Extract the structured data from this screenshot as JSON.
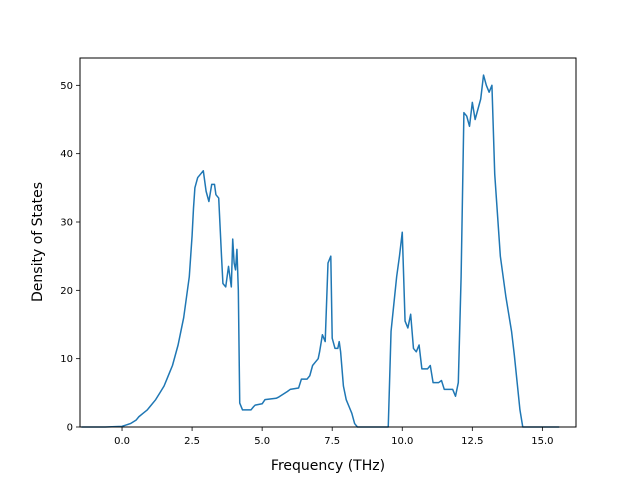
{
  "chart_data": {
    "type": "line",
    "title": "",
    "xlabel": "Frequency (THz)",
    "ylabel": "Density of States",
    "xlim": [
      -1.5,
      16.2
    ],
    "ylim": [
      0,
      54
    ],
    "x_ticks": [
      0.0,
      2.5,
      5.0,
      7.5,
      10.0,
      12.5,
      15.0
    ],
    "x_tick_labels": [
      "0.0",
      "2.5",
      "5.0",
      "7.5",
      "10.0",
      "12.5",
      "15.0"
    ],
    "y_ticks": [
      0,
      10,
      20,
      30,
      40,
      50
    ],
    "y_tick_labels": [
      "0",
      "10",
      "20",
      "30",
      "40",
      "50"
    ],
    "grid": false,
    "legend": "none",
    "series": [
      {
        "color": "#1f77b4",
        "x": [
          -1.45,
          -0.6,
          0.0,
          0.3,
          0.5,
          0.6,
          0.75,
          0.9,
          1.0,
          1.2,
          1.35,
          1.5,
          1.6,
          1.7,
          1.8,
          1.9,
          2.0,
          2.1,
          2.2,
          2.3,
          2.4,
          2.5,
          2.55,
          2.6,
          2.7,
          2.8,
          2.9,
          3.0,
          3.1,
          3.2,
          3.3,
          3.35,
          3.45,
          3.55,
          3.6,
          3.7,
          3.8,
          3.9,
          3.95,
          4.0,
          4.05,
          4.1,
          4.15,
          4.2,
          4.3,
          4.4,
          4.6,
          4.7,
          4.75,
          5.0,
          5.1,
          5.5,
          5.6,
          5.9,
          6.0,
          6.3,
          6.4,
          6.6,
          6.7,
          6.8,
          6.9,
          7.0,
          7.05,
          7.15,
          7.25,
          7.35,
          7.45,
          7.5,
          7.6,
          7.7,
          7.75,
          7.8,
          7.9,
          8.0,
          8.1,
          8.2,
          8.3,
          8.4,
          9.5,
          9.6,
          9.7,
          9.8,
          9.9,
          10.0,
          10.1,
          10.2,
          10.3,
          10.4,
          10.5,
          10.6,
          10.7,
          10.8,
          10.9,
          11.0,
          11.1,
          11.2,
          11.3,
          11.4,
          11.5,
          11.6,
          11.8,
          11.9,
          12.0,
          12.1,
          12.2,
          12.3,
          12.4,
          12.5,
          12.6,
          12.7,
          12.8,
          12.9,
          13.0,
          13.1,
          13.2,
          13.3,
          13.5,
          13.7,
          13.9,
          14.0,
          14.1,
          14.2,
          14.3,
          15.6
        ],
        "y": [
          0,
          0,
          0.1,
          0.5,
          1.0,
          1.5,
          2.0,
          2.5,
          3.0,
          4.0,
          5.0,
          6.0,
          7.0,
          8.0,
          9.0,
          10.5,
          12.0,
          14.0,
          16.0,
          19.0,
          22.0,
          28.0,
          32.0,
          35.0,
          36.5,
          37.0,
          37.5,
          34.5,
          33.0,
          35.5,
          35.5,
          34.0,
          33.5,
          25.0,
          21.0,
          20.5,
          23.5,
          20.5,
          27.5,
          24.0,
          23.0,
          26.0,
          20.0,
          3.5,
          2.5,
          2.5,
          2.5,
          3.0,
          3.2,
          3.4,
          4.0,
          4.2,
          4.4,
          5.2,
          5.5,
          5.7,
          7.0,
          7.0,
          7.5,
          9.0,
          9.5,
          10.0,
          11.0,
          13.5,
          12.5,
          24.0,
          25.0,
          13.0,
          11.5,
          11.5,
          12.5,
          11.0,
          6.0,
          4.0,
          3.0,
          2.0,
          0.5,
          0,
          0,
          14.0,
          18.0,
          22.0,
          25.0,
          28.5,
          15.5,
          14.5,
          16.5,
          11.5,
          11.0,
          12.0,
          8.5,
          8.5,
          8.5,
          9.0,
          6.5,
          6.5,
          6.5,
          6.8,
          5.5,
          5.5,
          5.5,
          4.5,
          6.5,
          22.0,
          46.0,
          45.5,
          44.0,
          47.5,
          45.0,
          46.5,
          48.0,
          51.5,
          50.0,
          49.0,
          50.0,
          37.0,
          25.0,
          19.0,
          14.0,
          10.5,
          6.5,
          2.5,
          0,
          0
        ]
      }
    ]
  }
}
